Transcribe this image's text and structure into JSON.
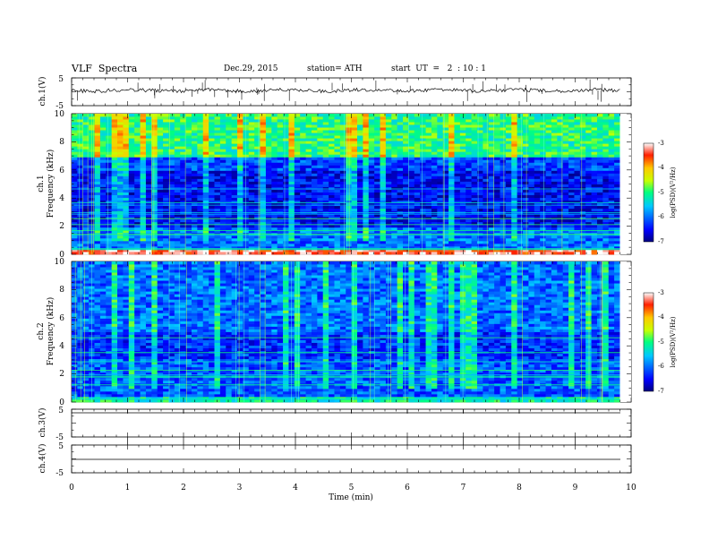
{
  "header": {
    "title": "VLF  Spectra",
    "date": "Dec.29, 2015",
    "station": "station= ATH",
    "start": "start  UT  =   2  : 10 : 1"
  },
  "chart_data": {
    "type": "heatmap",
    "title": "VLF  Spectra",
    "xlabel": "Time  (min)",
    "xlim": [
      0,
      10
    ],
    "xticks": [
      "0",
      "1",
      "2",
      "3",
      "4",
      "5",
      "6",
      "7",
      "8",
      "9",
      "10"
    ],
    "data_extent_min": 9.8,
    "panels": [
      {
        "id": "ch1-waveform",
        "kind": "line",
        "ylabel": "ch.1(V)",
        "ylim": [
          -5,
          5
        ],
        "yticks": [
          "5",
          "-5"
        ]
      },
      {
        "id": "ch1-spectrogram",
        "kind": "spectrogram",
        "ylabel_top": "ch.1",
        "ylabel": "Frequency (kHz)",
        "ylim": [
          0,
          10
        ],
        "yticks": [
          "0",
          "2",
          "4",
          "6",
          "8",
          "10"
        ],
        "colorbar": {
          "label": "log(PSD)(V²/Hz)",
          "ticks": [
            "-3",
            "-4",
            "-5",
            "-6",
            "-7"
          ],
          "range": [
            -7,
            -3
          ]
        },
        "bands": [
          {
            "f": [
              0,
              0.3
            ],
            "level": -3.3
          },
          {
            "f": [
              0.3,
              2.0
            ],
            "level": -6.0
          },
          {
            "f": [
              2.0,
              6.0
            ],
            "level": -6.5
          },
          {
            "f": [
              6.0,
              7.0
            ],
            "level": -6.2
          },
          {
            "f": [
              7.0,
              10.0
            ],
            "level": -5.0
          }
        ]
      },
      {
        "id": "ch2-spectrogram",
        "kind": "spectrogram",
        "ylabel_top": "ch.2",
        "ylabel": "Frequency (kHz)",
        "ylim": [
          0,
          10
        ],
        "yticks": [
          "0",
          "2",
          "4",
          "6",
          "8",
          "10"
        ],
        "colorbar": {
          "label": "log(PSD)(V²/Hz)",
          "ticks": [
            "-3",
            "-4",
            "-5",
            "-6",
            "-7"
          ],
          "range": [
            -7,
            -3
          ]
        },
        "bands": [
          {
            "f": [
              0,
              0.3
            ],
            "level": -5.2
          },
          {
            "f": [
              0.3,
              3.0
            ],
            "level": -6.1
          },
          {
            "f": [
              3.0,
              5.0
            ],
            "level": -6.3
          },
          {
            "f": [
              5.0,
              10.0
            ],
            "level": -6.0
          }
        ]
      },
      {
        "id": "ch3-waveform",
        "kind": "line",
        "ylabel": "ch.3(V)",
        "ylim": [
          -5,
          5
        ],
        "yticks": [
          "5",
          "-5"
        ]
      },
      {
        "id": "ch4-waveform",
        "kind": "line",
        "ylabel": "ch.4(V)",
        "ylim": [
          -5,
          5
        ],
        "yticks": [
          "5",
          "-5"
        ]
      }
    ]
  }
}
